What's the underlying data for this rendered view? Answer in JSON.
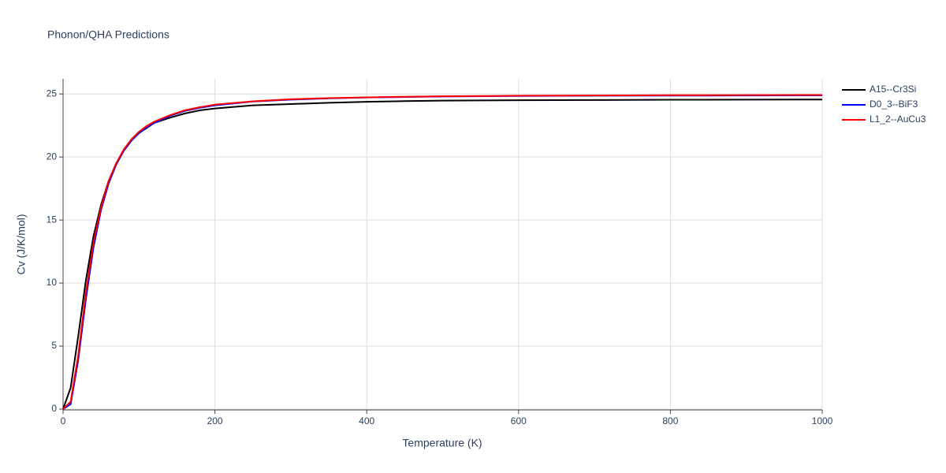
{
  "chart_data": {
    "type": "line",
    "title": "Phonon/QHA Predictions",
    "x_label": "Temperature (K)",
    "y_label": "Cv (J/K/mol)",
    "x": [
      0,
      10,
      20,
      30,
      40,
      50,
      60,
      70,
      80,
      90,
      100,
      110,
      120,
      140,
      160,
      180,
      200,
      250,
      300,
      350,
      400,
      450,
      500,
      600,
      700,
      800,
      900,
      1000
    ],
    "series": [
      {
        "name": "A15--Cr3Si",
        "color": "#000000",
        "values": [
          0,
          1.7,
          5.8,
          10.2,
          13.7,
          16.2,
          18.1,
          19.5,
          20.5,
          21.3,
          21.9,
          22.3,
          22.7,
          23.1,
          23.45,
          23.7,
          23.85,
          24.1,
          24.2,
          24.3,
          24.38,
          24.43,
          24.47,
          24.5,
          24.52,
          24.54,
          24.55,
          24.56
        ]
      },
      {
        "name": "D0_3--BiF3",
        "color": "#0000ff",
        "values": [
          0,
          0.4,
          3.9,
          8.7,
          12.8,
          15.8,
          17.9,
          19.4,
          20.5,
          21.3,
          21.9,
          22.35,
          22.7,
          23.25,
          23.65,
          23.9,
          24.1,
          24.4,
          24.55,
          24.65,
          24.72,
          24.76,
          24.8,
          24.84,
          24.86,
          24.87,
          24.88,
          24.89
        ]
      },
      {
        "name": "L1_2--AuCu3",
        "color": "#ff0000",
        "values": [
          0,
          0.6,
          4.3,
          9.2,
          13.2,
          16.0,
          18.1,
          19.5,
          20.6,
          21.4,
          22.0,
          22.45,
          22.8,
          23.3,
          23.7,
          23.95,
          24.15,
          24.42,
          24.58,
          24.67,
          24.73,
          24.78,
          24.82,
          24.86,
          24.88,
          24.9,
          24.91,
          24.92
        ]
      }
    ],
    "xlim": [
      0,
      1000
    ],
    "xticks": [
      0,
      200,
      400,
      600,
      800,
      1000
    ],
    "ylim": [
      0,
      26.2
    ],
    "yticks": [
      0,
      5,
      10,
      15,
      20,
      25
    ],
    "grid": true
  }
}
